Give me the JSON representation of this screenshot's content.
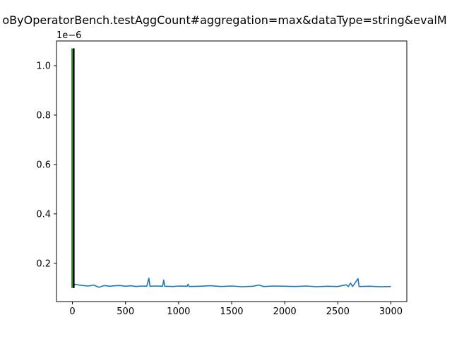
{
  "chart_data": {
    "type": "line",
    "title": "oByOperatorBench.testAggCount#aggregation=max&dataType=string&evalM",
    "xlabel": "",
    "ylabel": "",
    "y_offset_label": "1e−6",
    "xlim": [
      -150,
      3150
    ],
    "ylim": [
      4.5e-08,
      1.1e-06
    ],
    "x_ticks": [
      0,
      500,
      1000,
      1500,
      2000,
      2500,
      3000
    ],
    "x_tick_labels": [
      "0",
      "500",
      "1000",
      "1500",
      "2000",
      "2500",
      "3000"
    ],
    "y_ticks": [
      2e-07,
      4e-07,
      6e-07,
      8e-07,
      1e-06
    ],
    "y_tick_labels": [
      "0.2",
      "0.4",
      "0.6",
      "0.8",
      "1.0"
    ],
    "grid": false,
    "series": [
      {
        "color": "#1f77b4",
        "points": [
          [
            0,
            1.07e-06
          ],
          [
            2,
            1.1e-07
          ],
          [
            10,
            1.1e-07
          ],
          [
            30,
            1.15e-07
          ],
          [
            60,
            1.12e-07
          ],
          [
            100,
            1.1e-07
          ],
          [
            150,
            1.08e-07
          ],
          [
            200,
            1.12e-07
          ],
          [
            250,
            1.03e-07
          ],
          [
            300,
            1.1e-07
          ],
          [
            350,
            1.07e-07
          ],
          [
            400,
            1.09e-07
          ],
          [
            450,
            1.1e-07
          ],
          [
            500,
            1.07e-07
          ],
          [
            550,
            1.09e-07
          ],
          [
            600,
            1.06e-07
          ],
          [
            650,
            1.08e-07
          ],
          [
            700,
            1.07e-07
          ],
          [
            720,
            1.4e-07
          ],
          [
            730,
            1.07e-07
          ],
          [
            800,
            1.08e-07
          ],
          [
            850,
            1.07e-07
          ],
          [
            860,
            1.32e-07
          ],
          [
            870,
            1.07e-07
          ],
          [
            950,
            1.06e-07
          ],
          [
            1000,
            1.08e-07
          ],
          [
            1080,
            1.07e-07
          ],
          [
            1090,
            1.15e-07
          ],
          [
            1100,
            1.06e-07
          ],
          [
            1200,
            1.07e-07
          ],
          [
            1300,
            1.09e-07
          ],
          [
            1400,
            1.06e-07
          ],
          [
            1500,
            1.08e-07
          ],
          [
            1600,
            1.05e-07
          ],
          [
            1700,
            1.07e-07
          ],
          [
            1760,
            1.12e-07
          ],
          [
            1800,
            1.06e-07
          ],
          [
            1900,
            1.08e-07
          ],
          [
            2000,
            1.07e-07
          ],
          [
            2100,
            1.06e-07
          ],
          [
            2200,
            1.08e-07
          ],
          [
            2300,
            1.05e-07
          ],
          [
            2400,
            1.07e-07
          ],
          [
            2500,
            1.06e-07
          ],
          [
            2580,
            1.13e-07
          ],
          [
            2600,
            1.06e-07
          ],
          [
            2620,
            1.2e-07
          ],
          [
            2640,
            1.06e-07
          ],
          [
            2690,
            1.38e-07
          ],
          [
            2700,
            1.06e-07
          ],
          [
            2800,
            1.07e-07
          ],
          [
            2900,
            1.05e-07
          ],
          [
            3000,
            1.06e-07
          ]
        ]
      }
    ],
    "vlines": [
      {
        "x": -2,
        "y": [
          1e-07,
          1.07e-06
        ],
        "color": "#2ca02c"
      },
      {
        "x": 12,
        "y": [
          1e-07,
          1.07e-06
        ],
        "color": "#000000"
      }
    ]
  }
}
